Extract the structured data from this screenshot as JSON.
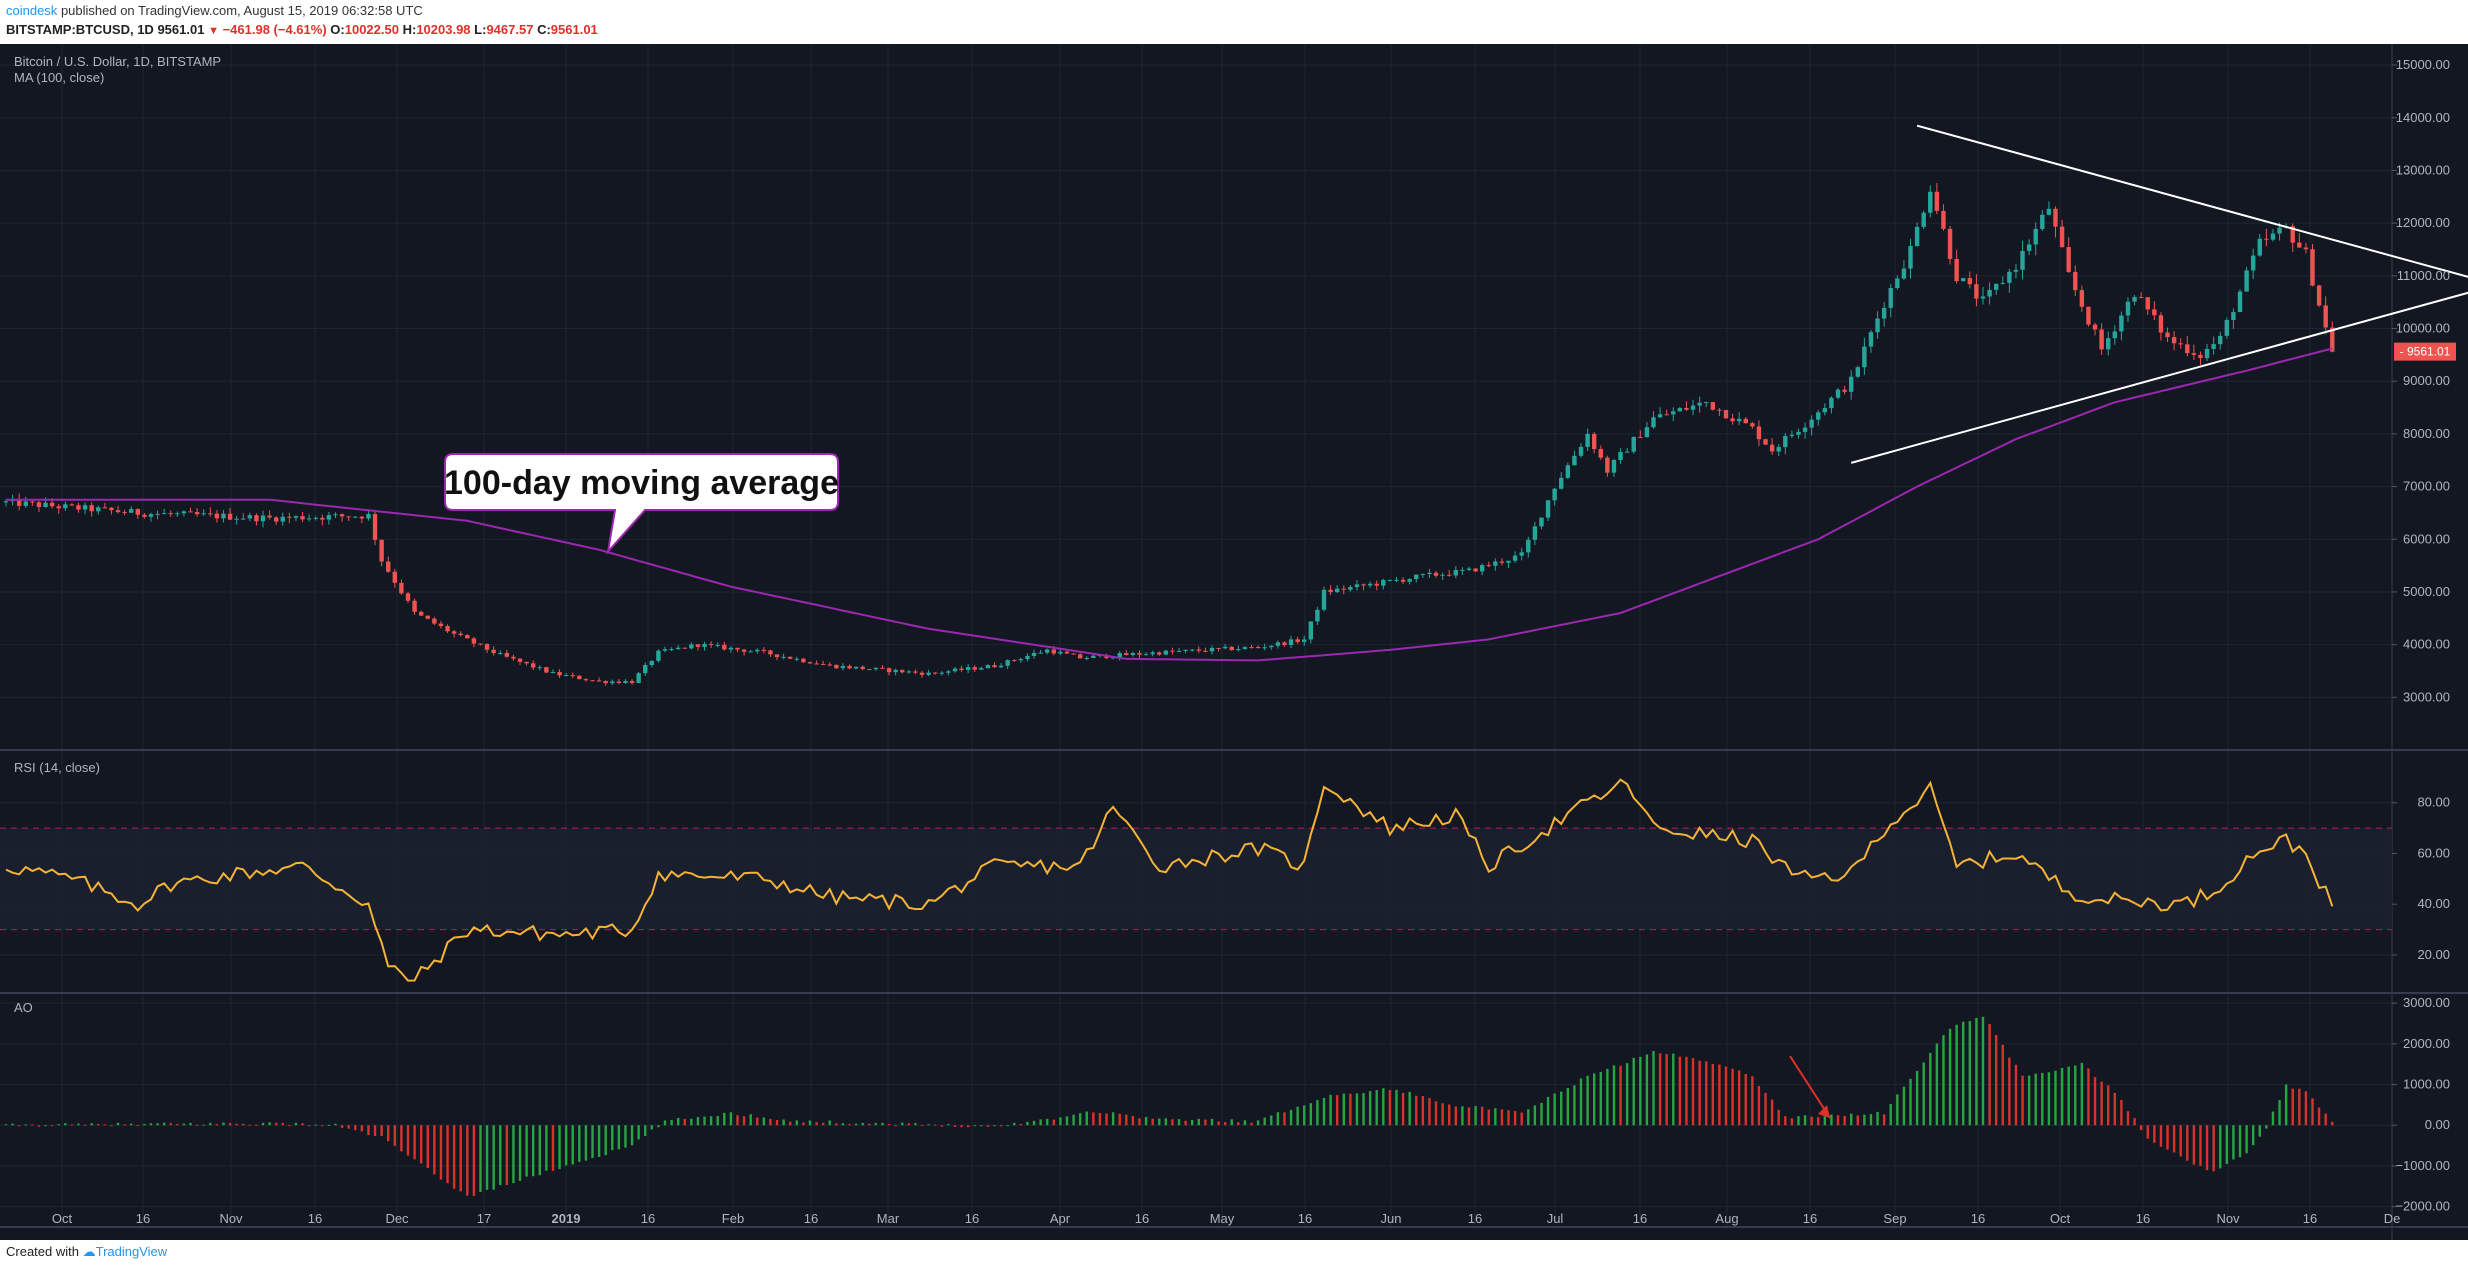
{
  "header": {
    "publisher": "coindesk",
    "published_text": "published on TradingView.com, August 15, 2019 06:32:58 UTC",
    "symbol": "BITSTAMP:BTCUSD, 1D",
    "last": "9561.01",
    "change": "−461.98 (−4.61%)",
    "o_label": "O:",
    "o_value": "10022.50",
    "h_label": "H:",
    "h_value": "10203.98",
    "l_label": "L:",
    "l_value": "9467.57",
    "c_label": "C:",
    "c_value": "9561.01"
  },
  "footer": {
    "created_with": "Created with",
    "brand": "TradingView"
  },
  "colors": {
    "background": "#131722",
    "grid": "#1f2434",
    "up": "#26a69a",
    "down": "#ef5350",
    "ma": "#9c27b0",
    "rsi": "#f5b335",
    "ao_up": "#26a641",
    "ao_down": "#d9322b"
  },
  "chart_data": [
    {
      "type": "candlestick",
      "title": "Bitcoin / U.S. Dollar, 1D, BITSTAMP",
      "indicator_label": "MA (100, close)",
      "price_label": "9561.01",
      "ylim": [
        2000,
        15400
      ],
      "y_ticks": [
        "15000.00",
        "14000.00",
        "13000.00",
        "12000.00",
        "11000.00",
        "10000.00",
        "9000.00",
        "8000.00",
        "7000.00",
        "6000.00",
        "5000.00",
        "4000.00",
        "3000.00"
      ],
      "close_anchors": [
        [
          0,
          6700
        ],
        [
          20,
          6500
        ],
        [
          40,
          6400
        ],
        [
          55,
          6450
        ],
        [
          57,
          5600
        ],
        [
          62,
          4600
        ],
        [
          68,
          4200
        ],
        [
          75,
          3800
        ],
        [
          83,
          3450
        ],
        [
          90,
          3300
        ],
        [
          95,
          3300
        ],
        [
          99,
          3850
        ],
        [
          105,
          4000
        ],
        [
          115,
          3850
        ],
        [
          125,
          3600
        ],
        [
          140,
          3450
        ],
        [
          150,
          3600
        ],
        [
          158,
          3900
        ],
        [
          163,
          3750
        ],
        [
          175,
          3850
        ],
        [
          190,
          3950
        ],
        [
          197,
          4100
        ],
        [
          200,
          5000
        ],
        [
          205,
          5100
        ],
        [
          215,
          5300
        ],
        [
          222,
          5400
        ],
        [
          230,
          5700
        ],
        [
          235,
          7000
        ],
        [
          240,
          8000
        ],
        [
          243,
          7300
        ],
        [
          250,
          8300
        ],
        [
          258,
          8600
        ],
        [
          265,
          8100
        ],
        [
          268,
          7700
        ],
        [
          273,
          8200
        ],
        [
          280,
          9000
        ],
        [
          285,
          10500
        ],
        [
          289,
          11500
        ],
        [
          292,
          12700
        ],
        [
          296,
          11000
        ],
        [
          300,
          10500
        ],
        [
          305,
          11200
        ],
        [
          310,
          12300
        ],
        [
          313,
          11000
        ],
        [
          318,
          9600
        ],
        [
          323,
          10700
        ],
        [
          328,
          9800
        ],
        [
          333,
          9500
        ],
        [
          336,
          9800
        ],
        [
          342,
          11600
        ],
        [
          346,
          11900
        ],
        [
          349,
          11400
        ],
        [
          352,
          10000
        ],
        [
          353,
          9561
        ]
      ],
      "ma100_anchors": [
        [
          0,
          6750
        ],
        [
          40,
          6750
        ],
        [
          70,
          6350
        ],
        [
          90,
          5800
        ],
        [
          110,
          5100
        ],
        [
          140,
          4300
        ],
        [
          170,
          3730
        ],
        [
          190,
          3700
        ],
        [
          210,
          3900
        ],
        [
          225,
          4100
        ],
        [
          245,
          4600
        ],
        [
          260,
          5300
        ],
        [
          275,
          6000
        ],
        [
          290,
          7000
        ],
        [
          305,
          7900
        ],
        [
          320,
          8600
        ],
        [
          340,
          9200
        ],
        [
          353,
          9620
        ]
      ],
      "annotation": "100-day moving average",
      "triangle": {
        "upper_from": [
          290,
          13850
        ],
        "apex": [
          378,
          10830
        ],
        "lower_from": [
          280,
          7450
        ]
      }
    },
    {
      "type": "line",
      "title": "RSI (14, close)",
      "ylim": [
        5,
        100
      ],
      "y_ticks": [
        "80.00",
        "60.00",
        "40.00",
        "20.00"
      ],
      "bands": [
        70,
        30
      ],
      "anchors": [
        [
          0,
          55
        ],
        [
          10,
          50
        ],
        [
          20,
          40
        ],
        [
          25,
          48
        ],
        [
          35,
          52
        ],
        [
          45,
          55
        ],
        [
          55,
          40
        ],
        [
          58,
          15
        ],
        [
          62,
          10
        ],
        [
          70,
          30
        ],
        [
          85,
          28
        ],
        [
          95,
          30
        ],
        [
          99,
          52
        ],
        [
          115,
          50
        ],
        [
          125,
          43
        ],
        [
          140,
          40
        ],
        [
          150,
          55
        ],
        [
          163,
          55
        ],
        [
          168,
          78
        ],
        [
          175,
          55
        ],
        [
          190,
          62
        ],
        [
          197,
          55
        ],
        [
          200,
          88
        ],
        [
          210,
          70
        ],
        [
          220,
          75
        ],
        [
          225,
          55
        ],
        [
          240,
          80
        ],
        [
          246,
          88
        ],
        [
          250,
          70
        ],
        [
          265,
          65
        ],
        [
          272,
          50
        ],
        [
          280,
          52
        ],
        [
          285,
          70
        ],
        [
          292,
          85
        ],
        [
          296,
          55
        ],
        [
          305,
          60
        ],
        [
          313,
          45
        ],
        [
          318,
          42
        ],
        [
          330,
          40
        ],
        [
          335,
          45
        ],
        [
          342,
          62
        ],
        [
          346,
          65
        ],
        [
          349,
          60
        ],
        [
          352,
          44
        ],
        [
          353,
          38
        ]
      ]
    },
    {
      "type": "bar",
      "title": "AO",
      "ylim": [
        -2500,
        3200
      ],
      "y_ticks": [
        "3000.00",
        "2000.00",
        "1000.00",
        "0.00",
        "−1000.00",
        "−2000.00"
      ],
      "anchors": [
        [
          0,
          0
        ],
        [
          40,
          50
        ],
        [
          50,
          0
        ],
        [
          57,
          -300
        ],
        [
          65,
          -1200
        ],
        [
          70,
          -1750
        ],
        [
          80,
          -1250
        ],
        [
          95,
          -500
        ],
        [
          100,
          100
        ],
        [
          110,
          300
        ],
        [
          120,
          100
        ],
        [
          150,
          -30
        ],
        [
          160,
          200
        ],
        [
          165,
          350
        ],
        [
          175,
          150
        ],
        [
          190,
          100
        ],
        [
          200,
          700
        ],
        [
          210,
          900
        ],
        [
          220,
          500
        ],
        [
          230,
          300
        ],
        [
          240,
          1200
        ],
        [
          250,
          1800
        ],
        [
          258,
          1600
        ],
        [
          265,
          1200
        ],
        [
          270,
          200
        ],
        [
          285,
          300
        ],
        [
          295,
          2400
        ],
        [
          300,
          2700
        ],
        [
          306,
          1200
        ],
        [
          315,
          1500
        ],
        [
          320,
          800
        ],
        [
          325,
          -300
        ],
        [
          330,
          -800
        ],
        [
          335,
          -1150
        ],
        [
          340,
          -700
        ],
        [
          343,
          -50
        ],
        [
          346,
          1000
        ],
        [
          349,
          800
        ],
        [
          353,
          100
        ]
      ]
    }
  ],
  "x_axis_labels": [
    "Oct",
    "16",
    "Nov",
    "16",
    "Dec",
    "17",
    "2019",
    "16",
    "Feb",
    "16",
    "Mar",
    "16",
    "Apr",
    "16",
    "May",
    "16",
    "Jun",
    "16",
    "Jul",
    "16",
    "Aug",
    "16",
    "Sep",
    "16",
    "Oct",
    "16",
    "Nov",
    "16",
    "De"
  ]
}
